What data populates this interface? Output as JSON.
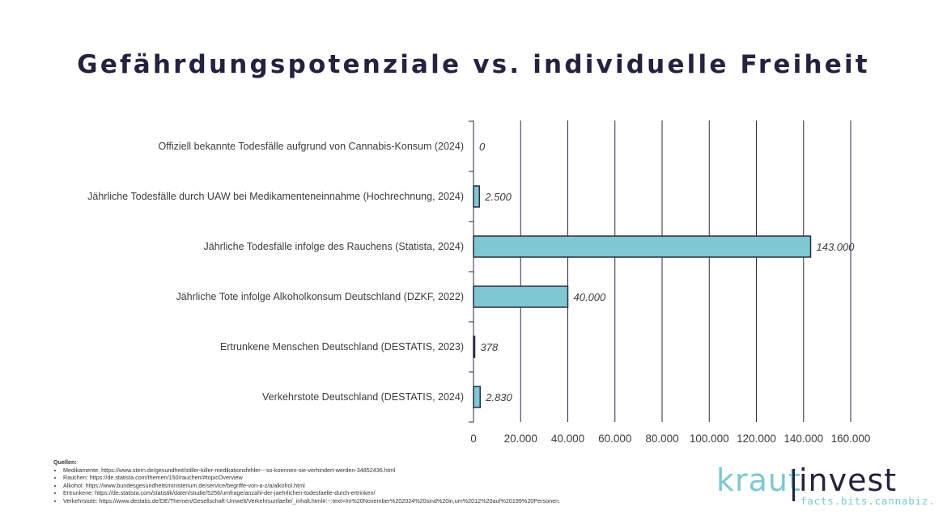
{
  "title": "Gefährdungspotenziale vs. individuelle Freiheit",
  "colors": {
    "bar_fill": "#7fc7d1",
    "bar_stroke": "#2b2a44",
    "grid": "#2b2a44",
    "title": "#24233f",
    "logo_light": "#7cc8d0",
    "logo_dark": "#24233f"
  },
  "chart_data": {
    "type": "bar",
    "orientation": "horizontal",
    "title": "Gefährdungspotenziale vs. individuelle Freiheit",
    "categories": [
      "Offiziell bekannte Todesfälle aufgrund von Cannabis-Konsum (2024)",
      "Jährliche Todesfälle durch UAW bei Medikamenteneinnahme (Hochrechnung, 2024)",
      "Jährliche Todesfälle infolge des Rauchens (Statista, 2024)",
      "Jährliche Tote infolge Alkoholkonsum Deutschland (DZKF, 2022)",
      "Ertrunkene Menschen Deutschland (DESTATIS, 2023)",
      "Verkehrstote Deutschland (DESTATIS, 2024)"
    ],
    "values": [
      0,
      2500,
      143000,
      40000,
      378,
      2830
    ],
    "value_labels": [
      "0",
      "2.500",
      "143.000",
      "40.000",
      "378",
      "2.830"
    ],
    "xlim": [
      0,
      160000
    ],
    "xticks": [
      0,
      20000,
      40000,
      60000,
      80000,
      100000,
      120000,
      140000,
      160000
    ],
    "xtick_labels": [
      "0",
      "20.000",
      "40.000",
      "60.000",
      "80.000",
      "100.000",
      "120.000",
      "140.000",
      "160.000"
    ],
    "grid": "vertical"
  },
  "sources": {
    "heading": "Quellen:",
    "items": [
      "Medikamente: https://www.stern.de/gesundheit/stiller-killer-medikationsfehler---so-koennen-sie-verhindert-werden-34852436.html",
      "Rauchen: https://de.statista.com/themen/150/rauchen/#topicOverview",
      "Alkohol: https://www.bundesgesundheitsministerium.de/service/begriffe-von-a-z/a/alkohol.html",
      "Ertrunkene: https://de.statista.com/statistik/daten/studie/5256/umfrage/anzahl-der-jaehrlichen-todesfaelle-durch-ertrinken/",
      "Verkehrstote: https://www.destatis.de/DE/Themen/Gesellschaft-Umwelt/Verkehrsunfaelle/_inhalt.html#:~:text=Im%20November%202024%20sind%20in,um%2012%20auf%20199%20Personen."
    ]
  },
  "logo": {
    "part1": "kraut",
    "part2": "invest",
    "tagline": "facts.bits.cannabiz."
  }
}
